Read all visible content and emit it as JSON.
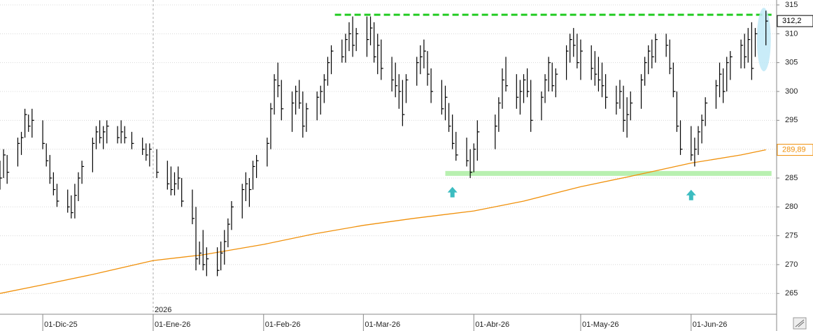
{
  "chart_data": {
    "type": "ohlc",
    "x": [
      "2025-11-19",
      "2025-11-20",
      "2025-11-21",
      "2025-11-24",
      "2025-11-25",
      "2025-11-26",
      "2025-11-27",
      "2025-11-28",
      "2025-12-01",
      "2025-12-02",
      "2025-12-03",
      "2025-12-04",
      "2025-12-05",
      "2025-12-08",
      "2025-12-09",
      "2025-12-10",
      "2025-12-11",
      "2025-12-12",
      "2025-12-15",
      "2025-12-16",
      "2025-12-17",
      "2025-12-18",
      "2025-12-19",
      "2025-12-22",
      "2025-12-23",
      "2025-12-24",
      "2025-12-26",
      "2025-12-29",
      "2025-12-30",
      "2025-12-31",
      "2026-01-02",
      "2026-01-05",
      "2026-01-06",
      "2026-01-07",
      "2026-01-08",
      "2026-01-09",
      "2026-01-12",
      "2026-01-13",
      "2026-01-14",
      "2026-01-15",
      "2026-01-16",
      "2026-01-19",
      "2026-01-20",
      "2026-01-21",
      "2026-01-22",
      "2026-01-23",
      "2026-01-26",
      "2026-01-27",
      "2026-01-28",
      "2026-01-29",
      "2026-01-30",
      "2026-02-02",
      "2026-02-03",
      "2026-02-04",
      "2026-02-05",
      "2026-02-06",
      "2026-02-09",
      "2026-02-10",
      "2026-02-11",
      "2026-02-12",
      "2026-02-13",
      "2026-02-16",
      "2026-02-17",
      "2026-02-18",
      "2026-02-19",
      "2026-02-20",
      "2026-02-23",
      "2026-02-24",
      "2026-02-25",
      "2026-02-26",
      "2026-02-27",
      "2026-03-02",
      "2026-03-03",
      "2026-03-04",
      "2026-03-05",
      "2026-03-06",
      "2026-03-09",
      "2026-03-10",
      "2026-03-11",
      "2026-03-12",
      "2026-03-13",
      "2026-03-16",
      "2026-03-17",
      "2026-03-18",
      "2026-03-19",
      "2026-03-20",
      "2026-03-23",
      "2026-03-24",
      "2026-03-25",
      "2026-03-26",
      "2026-03-27",
      "2026-03-30",
      "2026-03-31",
      "2026-04-01",
      "2026-04-02",
      "2026-04-07",
      "2026-04-08",
      "2026-04-09",
      "2026-04-10",
      "2026-04-13",
      "2026-04-14",
      "2026-04-15",
      "2026-04-16",
      "2026-04-17",
      "2026-04-20",
      "2026-04-21",
      "2026-04-22",
      "2026-04-23",
      "2026-04-24",
      "2026-04-27",
      "2026-04-28",
      "2026-04-29",
      "2026-04-30",
      "2026-05-01",
      "2026-05-04",
      "2026-05-05",
      "2026-05-06",
      "2026-05-07",
      "2026-05-08",
      "2026-05-11",
      "2026-05-12",
      "2026-05-13",
      "2026-05-14",
      "2026-05-15",
      "2026-05-18",
      "2026-05-19",
      "2026-05-20",
      "2026-05-21",
      "2026-05-22",
      "2026-05-25",
      "2026-05-26",
      "2026-05-27",
      "2026-05-28",
      "2026-05-29",
      "2026-06-01",
      "2026-06-02",
      "2026-06-03",
      "2026-06-04",
      "2026-06-05",
      "2026-06-08",
      "2026-06-09",
      "2026-06-10",
      "2026-06-11",
      "2026-06-12",
      "2026-06-15",
      "2026-06-16",
      "2026-06-17",
      "2026-06-18",
      "2026-06-19",
      "2026-06-22"
    ],
    "high": [
      288,
      290,
      289,
      292,
      293,
      297,
      296,
      297,
      295,
      291,
      289,
      286,
      284,
      283,
      282,
      284,
      286,
      288,
      292,
      294,
      295,
      294,
      295,
      294,
      295,
      294,
      293,
      292,
      291,
      291,
      290,
      288,
      287,
      286,
      287,
      285,
      283,
      280,
      274,
      276,
      273,
      273,
      274,
      276,
      278,
      281,
      284,
      286,
      285,
      288,
      289,
      292,
      298,
      303,
      305,
      302,
      300,
      301,
      302,
      300,
      298,
      300,
      301,
      303,
      306,
      308,
      309,
      310,
      312,
      313,
      311,
      313,
      313,
      312,
      310,
      309,
      306,
      305,
      303,
      302,
      303,
      306,
      308,
      309,
      307,
      304,
      302,
      301,
      298,
      296,
      293,
      292,
      290,
      291,
      295,
      296,
      299,
      304,
      306,
      303,
      302,
      303,
      304,
      302,
      300,
      303,
      306,
      305,
      304,
      308,
      310,
      311,
      310,
      309,
      308,
      307,
      306,
      305,
      303,
      301,
      302,
      301,
      299,
      300,
      303,
      306,
      308,
      309,
      310,
      310,
      309,
      305,
      300,
      295,
      294,
      292,
      294,
      296,
      299,
      302,
      305,
      304,
      306,
      307,
      309,
      310,
      311,
      312,
      311,
      314
    ],
    "low": [
      283,
      285,
      284,
      287,
      289,
      292,
      293,
      292,
      290,
      287,
      284,
      282,
      280,
      279,
      278,
      278,
      281,
      284,
      286,
      290,
      291,
      290,
      291,
      291,
      291,
      291,
      290,
      289,
      288,
      287,
      285,
      283,
      282,
      282,
      283,
      280,
      277,
      269,
      270,
      269,
      268,
      268,
      269,
      270,
      273,
      276,
      278,
      281,
      280,
      283,
      285,
      287,
      290,
      296,
      299,
      295,
      293,
      296,
      297,
      292,
      293,
      295,
      296,
      298,
      301,
      303,
      305,
      305,
      307,
      306,
      307,
      306,
      308,
      305,
      303,
      302,
      300,
      299,
      297,
      294,
      298,
      301,
      303,
      304,
      301,
      298,
      296,
      295,
      293,
      290,
      288,
      287,
      285,
      286,
      288,
      290,
      293,
      297,
      300,
      297,
      296,
      298,
      299,
      293,
      295,
      298,
      300,
      300,
      299,
      302,
      305,
      306,
      304,
      302,
      302,
      301,
      300,
      299,
      297,
      296,
      297,
      293,
      292,
      295,
      297,
      301,
      303,
      304,
      305,
      306,
      303,
      299,
      293,
      289,
      288,
      287,
      289,
      291,
      294,
      297,
      299,
      298,
      300,
      302,
      304,
      304,
      305,
      302,
      306,
      308
    ],
    "close": [
      285,
      289,
      286,
      291,
      292,
      296,
      294,
      295,
      291,
      288,
      285,
      283,
      281,
      280,
      279,
      282,
      285,
      287,
      291,
      293,
      292,
      293,
      294,
      292,
      293,
      292,
      291,
      290,
      289,
      290,
      286,
      284,
      283,
      284,
      285,
      281,
      278,
      271,
      272,
      270,
      271,
      269,
      272,
      274,
      277,
      280,
      283,
      284,
      283,
      287,
      288,
      291,
      297,
      302,
      301,
      297,
      298,
      300,
      298,
      294,
      297,
      299,
      300,
      302,
      305,
      307,
      306,
      309,
      310,
      308,
      310,
      309,
      311,
      306,
      308,
      304,
      302,
      301,
      300,
      296,
      302,
      305,
      306,
      307,
      303,
      300,
      297,
      299,
      294,
      291,
      289,
      288,
      286,
      290,
      293,
      294,
      298,
      302,
      301,
      299,
      300,
      302,
      300,
      295,
      299,
      302,
      305,
      301,
      303,
      307,
      309,
      308,
      305,
      307,
      304,
      303,
      302,
      301,
      299,
      298,
      300,
      295,
      296,
      298,
      302,
      305,
      307,
      306,
      309,
      308,
      304,
      300,
      294,
      290,
      289,
      290,
      293,
      295,
      298,
      301,
      303,
      300,
      305,
      306,
      308,
      306,
      309,
      304,
      310,
      312.2
    ],
    "color": "#000000",
    "moving_average": {
      "color": "#f0900a",
      "x": [
        "2025-11-19",
        "2025-12-01",
        "2025-12-15",
        "2026-01-01",
        "2026-01-15",
        "2026-02-01",
        "2026-02-15",
        "2026-03-01",
        "2026-03-15",
        "2026-04-01",
        "2026-04-15",
        "2026-05-01",
        "2026-05-15",
        "2026-06-01",
        "2026-06-15",
        "2026-06-22"
      ],
      "values": [
        265.0,
        266.5,
        268.3,
        270.7,
        271.7,
        273.5,
        275.3,
        276.8,
        278.0,
        279.3,
        281.0,
        283.5,
        285.3,
        287.6,
        289.0,
        289.89
      ]
    },
    "resistance": {
      "value": 313.3,
      "from": "2026-02-21",
      "color": "#22cc22"
    },
    "support": {
      "value": 285.8,
      "from": "2026-03-24",
      "color": "#b8f0b0"
    },
    "arrows": [
      {
        "x": "2026-03-26",
        "y": 282.5
      },
      {
        "x": "2026-06-01",
        "y": 282
      }
    ],
    "arrow_color": "#3cbcc0",
    "price_labels": [
      {
        "value": 312.2,
        "label": "312,2",
        "color": "#000000"
      },
      {
        "value": 289.89,
        "label": "289,89",
        "color": "#f0900a"
      }
    ],
    "xlim": [
      "2025-11-19",
      "2026-06-25"
    ],
    "xticks": [
      {
        "value": "2025-12-01",
        "label": "01-Dic-25"
      },
      {
        "value": "2026-01-01",
        "label": "01-Ene-26"
      },
      {
        "value": "2026-02-01",
        "label": "01-Feb-26"
      },
      {
        "value": "2026-03-01",
        "label": "01-Mar-26"
      },
      {
        "value": "2026-04-01",
        "label": "01-Abr-26"
      },
      {
        "value": "2026-05-01",
        "label": "01-May-26"
      },
      {
        "value": "2026-06-01",
        "label": "01-Jun-26"
      }
    ],
    "year_marker": {
      "value": "2026-01-01",
      "label": "2026"
    },
    "ylim": [
      261.4,
      315.85
    ],
    "yticks": [
      265,
      270,
      275,
      280,
      285,
      290,
      295,
      300,
      305,
      310,
      315
    ],
    "grid": true
  }
}
